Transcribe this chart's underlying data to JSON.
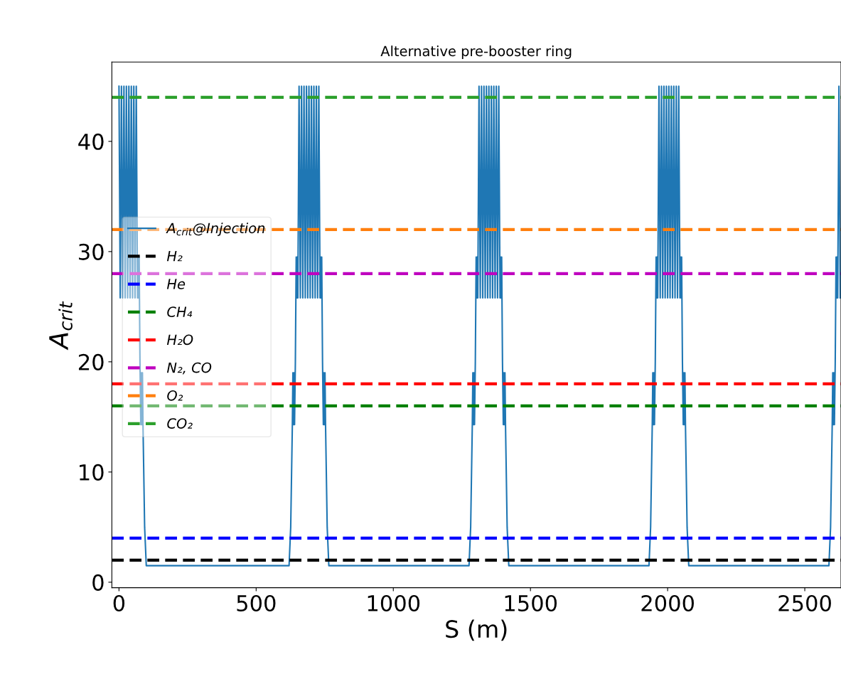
{
  "chart_data": {
    "type": "line",
    "title": "Alternative pre-booster ring",
    "xlabel": "S (m)",
    "ylabel": "A$_{crit}$",
    "xlim": [
      -26,
      2632
    ],
    "ylim": [
      -0.5,
      47.2
    ],
    "xticks": [
      0,
      500,
      1000,
      1500,
      2000,
      2500
    ],
    "yticks": [
      0,
      10,
      20,
      30,
      40
    ],
    "legend": "center left",
    "grid": false,
    "marker": "none",
    "series": [
      {
        "name": "A$_{crit}$@Injection",
        "color": "#1f77b4",
        "line_style": "solid",
        "x": [
          0,
          4.5,
          9,
          13.5,
          18,
          22.5,
          27,
          31.5,
          36,
          40.5,
          45,
          49.5,
          54,
          58.5,
          63,
          67.5,
          69.5,
          71.5,
          73.5,
          76.5,
          79.5,
          81.5,
          83.5,
          85.5,
          87.5,
          93.5,
          99.5,
          620,
          626,
          632,
          634,
          636,
          638,
          640,
          643,
          646,
          648,
          650,
          652,
          656.5,
          661,
          665.5,
          670,
          674.5,
          679,
          683.5,
          688,
          692.5,
          697,
          701.5,
          706,
          710.5,
          715,
          719.5,
          724,
          728.5,
          733,
          735,
          737,
          739,
          742,
          745,
          747,
          749,
          751,
          753,
          759,
          765,
          1276,
          1282,
          1288,
          1290,
          1292,
          1294,
          1296,
          1299,
          1302,
          1304,
          1306,
          1308,
          1312.5,
          1317,
          1321.5,
          1326,
          1330.5,
          1335,
          1339.5,
          1344,
          1348.5,
          1353,
          1357.5,
          1362,
          1366.5,
          1371,
          1375.5,
          1380,
          1384.5,
          1389,
          1391,
          1393,
          1395,
          1398,
          1401,
          1403,
          1405,
          1407,
          1409,
          1415,
          1421,
          1932,
          1938,
          1944,
          1946,
          1948,
          1950,
          1952,
          1955,
          1958,
          1960,
          1962,
          1964,
          1968.5,
          1973,
          1977.5,
          1982,
          1986.5,
          1991,
          1995.5,
          2000,
          2004.5,
          2009,
          2013.5,
          2018,
          2022.5,
          2027,
          2031.5,
          2036,
          2040.5,
          2045,
          2047,
          2049,
          2051,
          2054,
          2057,
          2059,
          2061,
          2063,
          2065,
          2071,
          2077,
          2588,
          2594,
          2600,
          2602,
          2604,
          2606,
          2608,
          2611,
          2614,
          2616,
          2618,
          2620,
          2624.5,
          2629
        ],
        "values": [
          45,
          25.8,
          45,
          25.8,
          45,
          25.8,
          45,
          25.8,
          45,
          25.8,
          45,
          25.8,
          45,
          25.8,
          45,
          25.8,
          29.5,
          25.8,
          29.5,
          20,
          14.3,
          19,
          14.3,
          19,
          14.3,
          5,
          1.5,
          1.5,
          5,
          14.3,
          19,
          14.3,
          19,
          14.3,
          20,
          29.5,
          25.8,
          29.5,
          25.8,
          45,
          25.8,
          45,
          25.8,
          45,
          25.8,
          45,
          25.8,
          45,
          25.8,
          45,
          25.8,
          45,
          25.8,
          45,
          25.8,
          45,
          25.8,
          29.5,
          25.8,
          29.5,
          20,
          14.3,
          19,
          14.3,
          19,
          14.3,
          5,
          1.5,
          1.5,
          5,
          14.3,
          19,
          14.3,
          19,
          14.3,
          20,
          29.5,
          25.8,
          29.5,
          25.8,
          45,
          25.8,
          45,
          25.8,
          45,
          25.8,
          45,
          25.8,
          45,
          25.8,
          45,
          25.8,
          45,
          25.8,
          45,
          25.8,
          45,
          25.8,
          29.5,
          25.8,
          29.5,
          20,
          14.3,
          19,
          14.3,
          19,
          14.3,
          5,
          1.5,
          1.5,
          5,
          14.3,
          19,
          14.3,
          19,
          14.3,
          20,
          29.5,
          25.8,
          29.5,
          25.8,
          45,
          25.8,
          45,
          25.8,
          45,
          25.8,
          45,
          25.8,
          45,
          25.8,
          45,
          25.8,
          45,
          25.8,
          45,
          25.8,
          45,
          25.8,
          29.5,
          25.8,
          29.5,
          20,
          14.3,
          19,
          14.3,
          19,
          14.3,
          5,
          1.5,
          1.5,
          5,
          14.3,
          19,
          14.3,
          19,
          14.3,
          20,
          29.5,
          25.8,
          29.5,
          25.8,
          45,
          25.8
        ]
      },
      {
        "name": "H₂",
        "color": "#000000",
        "line_style": "dashed",
        "x": [
          -26,
          2632
        ],
        "values": [
          2,
          2
        ]
      },
      {
        "name": "He",
        "color": "#0000ff",
        "line_style": "dashed",
        "x": [
          -26,
          2632
        ],
        "values": [
          4,
          4
        ]
      },
      {
        "name": "CH₄",
        "color": "#008000",
        "line_style": "dashed",
        "x": [
          -26,
          2632
        ],
        "values": [
          16,
          16
        ]
      },
      {
        "name": "H₂O",
        "color": "#ff0000",
        "line_style": "dashed",
        "x": [
          -26,
          2632
        ],
        "values": [
          18,
          18
        ]
      },
      {
        "name": "N₂, CO",
        "color": "#bf00bf",
        "line_style": "dashed",
        "x": [
          -26,
          2632
        ],
        "values": [
          28,
          28
        ]
      },
      {
        "name": "O₂",
        "color": "#ff7f0e",
        "line_style": "dashed",
        "x": [
          -26,
          2632
        ],
        "values": [
          32,
          32
        ]
      },
      {
        "name": "CO₂",
        "color": "#2ca02c",
        "line_style": "dashed",
        "x": [
          -26,
          2632
        ],
        "values": [
          44,
          44
        ]
      }
    ]
  }
}
